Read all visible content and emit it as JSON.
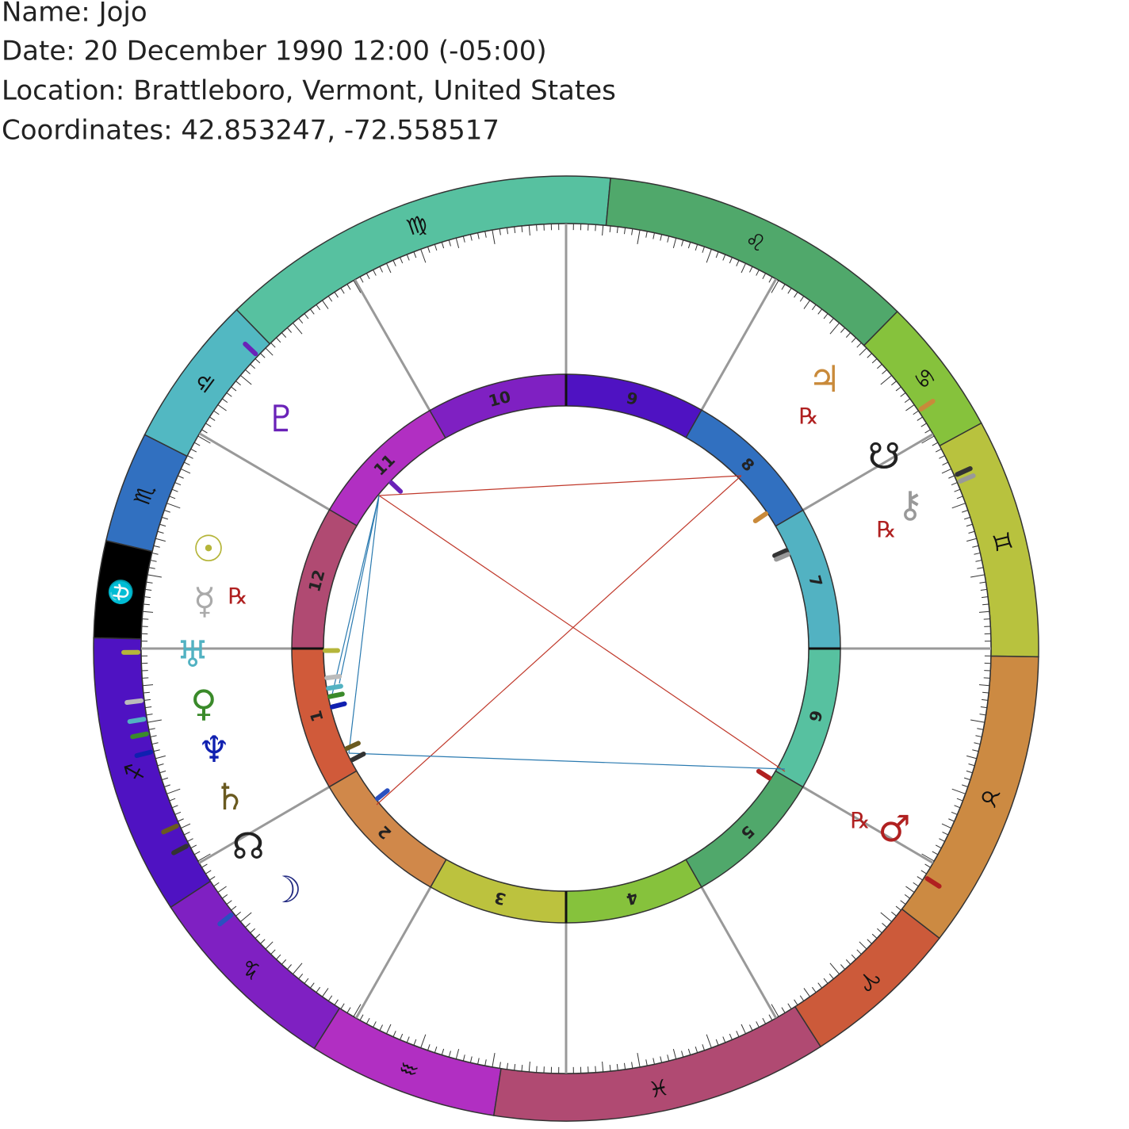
{
  "header": {
    "name": "Name: Jojo",
    "date": "Date: 20 December 1990 12:00 (-05:00)",
    "location": "Location: Brattleboro, Vermont, United States",
    "coordinates": "Coordinates: 42.853247, -72.558517"
  },
  "zodiac": [
    {
      "glyph": "♍",
      "color": "#57c1a0"
    },
    {
      "glyph": "♎",
      "color": "#52b8c2"
    },
    {
      "glyph": "♏",
      "color": "#3170c0"
    },
    {
      "glyph": "⛎",
      "color": "#000000"
    },
    {
      "glyph": "♐",
      "color": "#4f12c2"
    },
    {
      "glyph": "♑",
      "color": "#7f20c2"
    },
    {
      "glyph": "♒",
      "color": "#b12fc2"
    },
    {
      "glyph": "♓",
      "color": "#b04a72"
    },
    {
      "glyph": "♈",
      "color": "#cc5a3a"
    },
    {
      "glyph": "♉",
      "color": "#cc8a42"
    },
    {
      "glyph": "♊",
      "color": "#b8c23e"
    },
    {
      "glyph": "♋",
      "color": "#86c23c"
    },
    {
      "glyph": "♌",
      "color": "#50a86b"
    }
  ],
  "houses": [
    {
      "label": "1",
      "color": "#d05a3a"
    },
    {
      "label": "2",
      "color": "#d0884a"
    },
    {
      "label": "3",
      "color": "#bcc23e"
    },
    {
      "label": "4",
      "color": "#86c23c"
    },
    {
      "label": "5",
      "color": "#50a86b"
    },
    {
      "label": "6",
      "color": "#57c1a0"
    },
    {
      "label": "7",
      "color": "#52b2c2"
    },
    {
      "label": "8",
      "color": "#3170c0"
    },
    {
      "label": "9",
      "color": "#4f12c2"
    },
    {
      "label": "10",
      "color": "#7f20c2"
    },
    {
      "label": "11",
      "color": "#b12fc2"
    },
    {
      "label": "12",
      "color": "#b04a72"
    }
  ],
  "planets": [
    {
      "glyph": "♇",
      "color": "#6a22b8"
    },
    {
      "glyph": "♃",
      "color": "#c98a3a"
    },
    {
      "glyph": "☋",
      "color": "#222222"
    },
    {
      "glyph": "⚷",
      "color": "#999999"
    },
    {
      "glyph": "☉",
      "color": "#b5b53a"
    },
    {
      "glyph": "☿",
      "color": "#aaaaaa"
    },
    {
      "glyph": "♅",
      "color": "#52b2c2"
    },
    {
      "glyph": "♀",
      "color": "#3a8a2a"
    },
    {
      "glyph": "♆",
      "color": "#1020b0"
    },
    {
      "glyph": "♄",
      "color": "#6a5a20"
    },
    {
      "glyph": "☊",
      "color": "#222222"
    },
    {
      "glyph": "☽",
      "color": "#202880"
    },
    {
      "glyph": "♂",
      "color": "#b02020"
    }
  ],
  "retrograde": [
    "℞",
    "℞",
    "℞",
    "℞"
  ]
}
